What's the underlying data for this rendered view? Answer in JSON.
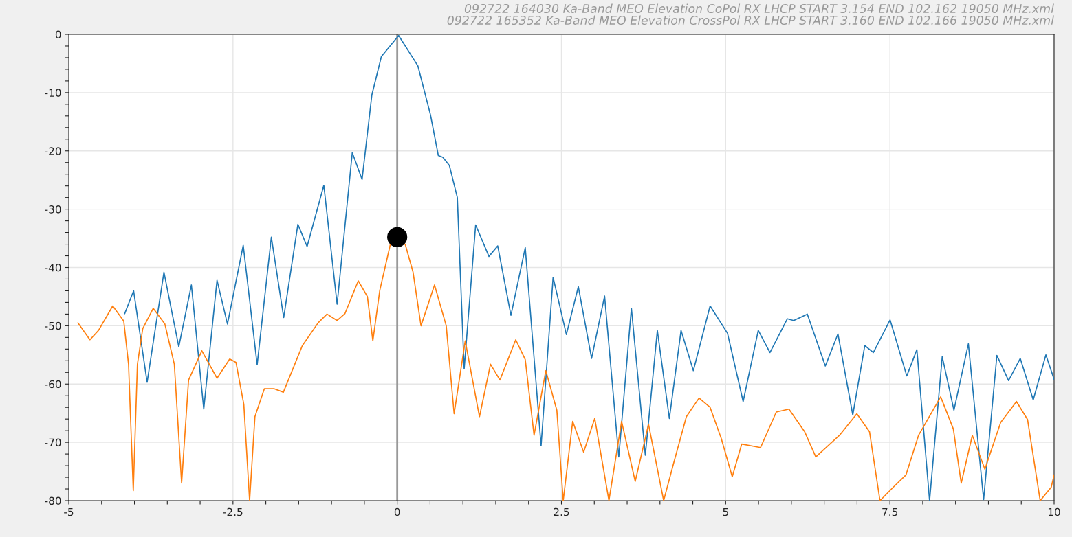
{
  "chart_data": {
    "type": "line",
    "annotations": [
      "092722 164030 Ka-Band MEO Elevation CoPol RX LHCP START 3.154 END 102.162 19050 MHz.xml",
      "092722 165352 Ka-Band MEO Elevation CrossPol RX LHCP START 3.160 END 102.166 19050 MHz.xml"
    ],
    "series": [
      {
        "color": "#1f77b4",
        "x": [
          -4.148,
          -4.013,
          -3.807,
          -3.551,
          -3.325,
          -3.133,
          -2.945,
          -2.743,
          -2.584,
          -2.344,
          -2.132,
          -1.916,
          -1.728,
          -1.512,
          -1.372,
          -1.117,
          -0.915,
          -0.684,
          -0.535,
          -0.386,
          -0.241,
          0.022,
          0.314,
          0.506,
          0.626,
          0.694,
          0.794,
          0.915,
          1.019,
          1.194,
          1.396,
          1.53,
          1.731,
          1.949,
          2.19,
          2.373,
          2.575,
          2.757,
          2.959,
          3.157,
          3.373,
          3.565,
          3.777,
          3.96,
          4.143,
          4.321,
          4.508,
          4.763,
          5.028,
          5.266,
          5.496,
          5.674,
          5.939,
          6.035,
          6.243,
          6.517,
          6.709,
          6.935,
          7.118,
          7.248,
          7.503,
          7.757,
          7.911,
          8.104,
          8.297,
          8.475,
          8.695,
          8.927,
          9.129,
          9.307,
          9.485,
          9.682,
          9.875,
          10.0
        ],
        "values": [
          -47.9,
          -44.0,
          -59.7,
          -40.8,
          -53.6,
          -43.0,
          -64.3,
          -42.2,
          -49.7,
          -36.2,
          -56.7,
          -34.8,
          -48.6,
          -32.6,
          -36.4,
          -25.9,
          -46.3,
          -20.3,
          -24.9,
          -10.4,
          -3.8,
          -0.2,
          -5.4,
          -13.8,
          -20.8,
          -21.1,
          -22.5,
          -28.0,
          -57.4,
          -32.7,
          -38.1,
          -36.3,
          -48.2,
          -36.6,
          -70.6,
          -41.7,
          -51.5,
          -43.3,
          -55.6,
          -44.9,
          -72.5,
          -47.0,
          -72.2,
          -50.8,
          -65.9,
          -50.8,
          -57.7,
          -46.6,
          -51.3,
          -63.0,
          -50.8,
          -54.6,
          -48.8,
          -49.1,
          -48.0,
          -56.9,
          -51.4,
          -65.3,
          -53.4,
          -54.6,
          -49.0,
          -58.6,
          -54.1,
          -80.0,
          -55.3,
          -64.5,
          -53.1,
          -79.8,
          -55.1,
          -59.4,
          -55.6,
          -62.7,
          -55.0,
          -59.2
        ]
      },
      {
        "color": "#ff7f0e",
        "x": [
          -4.86,
          -4.678,
          -4.547,
          -4.331,
          -4.163,
          -4.09,
          -4.018,
          -3.955,
          -3.874,
          -3.714,
          -3.537,
          -3.393,
          -3.282,
          -3.176,
          -2.974,
          -2.743,
          -2.55,
          -2.454,
          -2.335,
          -2.247,
          -2.166,
          -2.022,
          -1.877,
          -1.733,
          -1.444,
          -1.204,
          -1.069,
          -0.915,
          -0.795,
          -0.593,
          -0.454,
          -0.371,
          -0.265,
          -0.098,
          0.121,
          0.241,
          0.362,
          0.568,
          0.746,
          0.866,
          1.035,
          1.252,
          1.42,
          1.564,
          1.804,
          1.949,
          2.083,
          2.262,
          2.43,
          2.527,
          2.671,
          2.838,
          3.007,
          3.223,
          3.416,
          3.623,
          3.826,
          4.056,
          4.21,
          4.402,
          4.595,
          4.763,
          4.932,
          5.1,
          5.244,
          5.531,
          5.77,
          5.963,
          6.203,
          6.372,
          6.732,
          6.997,
          7.19,
          7.349,
          7.551,
          7.744,
          7.936,
          8.273,
          8.466,
          8.586,
          8.755,
          8.946,
          9.186,
          9.427,
          9.596,
          9.788,
          9.956,
          10.0
        ],
        "values": [
          -49.5,
          -52.4,
          -50.8,
          -46.6,
          -49.2,
          -56.6,
          -78.3,
          -56.6,
          -50.5,
          -47.0,
          -49.7,
          -56.6,
          -77.0,
          -59.3,
          -54.3,
          -59.0,
          -55.7,
          -56.3,
          -63.5,
          -80.0,
          -65.6,
          -60.8,
          -60.8,
          -61.4,
          -53.4,
          -49.5,
          -48.0,
          -49.1,
          -47.9,
          -42.3,
          -45.0,
          -52.6,
          -43.9,
          -35.7,
          -36.0,
          -40.8,
          -50.0,
          -43.0,
          -50.0,
          -65.1,
          -52.6,
          -65.6,
          -56.6,
          -59.3,
          -52.4,
          -55.8,
          -68.8,
          -57.7,
          -64.5,
          -80.0,
          -66.4,
          -71.7,
          -65.9,
          -80.0,
          -66.4,
          -76.7,
          -66.9,
          -80.0,
          -73.5,
          -65.6,
          -62.4,
          -64.0,
          -69.3,
          -75.9,
          -70.3,
          -70.9,
          -64.8,
          -64.3,
          -68.2,
          -72.5,
          -68.8,
          -65.1,
          -68.2,
          -80.0,
          -77.7,
          -75.6,
          -68.8,
          -62.2,
          -67.7,
          -77.0,
          -68.8,
          -74.6,
          -66.6,
          -63.0,
          -66.1,
          -80.0,
          -77.7,
          -75.6
        ]
      },
      {
        "type": "scatter",
        "color": "#000000",
        "x": [
          0.0
        ],
        "values": [
          -34.8
        ]
      }
    ],
    "ref_lines": [
      {
        "axis": "x",
        "value": 0,
        "color": "#999999"
      }
    ],
    "xlim": [
      -5,
      10
    ],
    "xticks": [
      -5,
      {
        "value": -4.5,
        "label": null
      },
      {
        "value": -4,
        "label": null
      },
      {
        "value": -3.5,
        "label": null
      },
      {
        "value": -3,
        "label": null
      },
      -2.5,
      {
        "value": -2,
        "label": null
      },
      {
        "value": -1.5,
        "label": null
      },
      {
        "value": -1,
        "label": null
      },
      {
        "value": -0.5,
        "label": null
      },
      0,
      {
        "value": 0.5,
        "label": null
      },
      {
        "value": 1,
        "label": null
      },
      {
        "value": 1.5,
        "label": null
      },
      {
        "value": 2,
        "label": null
      },
      2.5,
      {
        "value": 3,
        "label": null
      },
      {
        "value": 3.5,
        "label": null
      },
      {
        "value": 4,
        "label": null
      },
      {
        "value": 4.5,
        "label": null
      },
      5,
      {
        "value": 5.5,
        "label": null
      },
      {
        "value": 6,
        "label": null
      },
      {
        "value": 6.5,
        "label": null
      },
      {
        "value": 7,
        "label": null
      },
      7.5,
      {
        "value": 8,
        "label": null
      },
      {
        "value": 8.5,
        "label": null
      },
      {
        "value": 9,
        "label": null
      },
      {
        "value": 9.5,
        "label": null
      },
      10
    ],
    "ylim": [
      -80,
      0
    ],
    "yticks": [
      -80,
      {
        "value": -78,
        "label": null
      },
      {
        "value": -76,
        "label": null
      },
      {
        "value": -74,
        "label": null
      },
      {
        "value": -72,
        "label": null
      },
      -70,
      {
        "value": -68,
        "label": null
      },
      {
        "value": -66,
        "label": null
      },
      {
        "value": -64,
        "label": null
      },
      {
        "value": -62,
        "label": null
      },
      -60,
      {
        "value": -58,
        "label": null
      },
      {
        "value": -56,
        "label": null
      },
      {
        "value": -54,
        "label": null
      },
      {
        "value": -52,
        "label": null
      },
      -50,
      {
        "value": -48,
        "label": null
      },
      {
        "value": -46,
        "label": null
      },
      {
        "value": -44,
        "label": null
      },
      {
        "value": -42,
        "label": null
      },
      -40,
      {
        "value": -38,
        "label": null
      },
      {
        "value": -36,
        "label": null
      },
      {
        "value": -34,
        "label": null
      },
      {
        "value": -32,
        "label": null
      },
      -30,
      {
        "value": -28,
        "label": null
      },
      {
        "value": -26,
        "label": null
      },
      {
        "value": -24,
        "label": null
      },
      {
        "value": -22,
        "label": null
      },
      -20,
      {
        "value": -18,
        "label": null
      },
      {
        "value": -16,
        "label": null
      },
      {
        "value": -14,
        "label": null
      },
      {
        "value": -12,
        "label": null
      },
      -10,
      {
        "value": -8,
        "label": null
      },
      {
        "value": -6,
        "label": null
      },
      {
        "value": -4,
        "label": null
      },
      {
        "value": -2,
        "label": null
      },
      0
    ],
    "grid": true
  }
}
